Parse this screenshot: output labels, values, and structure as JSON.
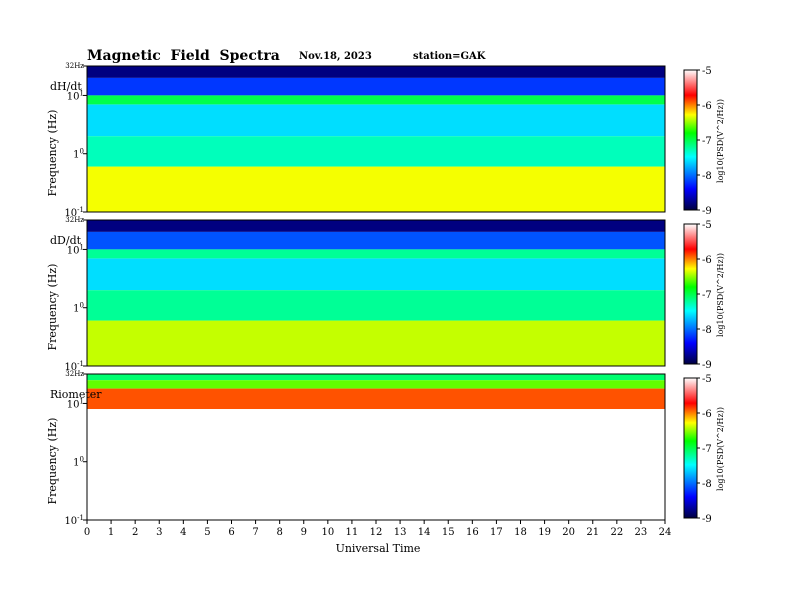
{
  "header": {
    "title": "Magnetic  Field  Spectra",
    "date": "Nov.18, 2023",
    "station": "station=GAK"
  },
  "chart_data": {
    "type": "heatmap",
    "xlabel": "Universal Time",
    "x_ticks": [
      "0",
      "1",
      "2",
      "3",
      "4",
      "5",
      "6",
      "7",
      "8",
      "9",
      "10",
      "11",
      "12",
      "13",
      "14",
      "15",
      "16",
      "17",
      "18",
      "19",
      "20",
      "21",
      "22",
      "23",
      "24"
    ],
    "xlim": [
      0,
      24
    ],
    "y_scale": "log",
    "ylim_hz": [
      0.1,
      32
    ],
    "colorbar": {
      "label": "log10(PSD(V^2/Hz))",
      "ticks": [
        "-5",
        "-6",
        "-7",
        "-8",
        "-9"
      ],
      "range": [
        -9,
        -5
      ],
      "colors": [
        "#000040",
        "#0000ff",
        "#00ffff",
        "#00ff00",
        "#ffff00",
        "#ff0000",
        "#ffffff"
      ]
    },
    "panels": [
      {
        "label": "dH/dt",
        "ylabel": "Frequency  (Hz)",
        "y_ticks": [
          "32Hz",
          "10",
          "1",
          "10"
        ],
        "y_tick_values": [
          32,
          10,
          1,
          0.1
        ],
        "y_tick_exponents": [
          "",
          "1",
          "0",
          "-1"
        ],
        "bands": [
          {
            "f_low": 20,
            "f_high": 32,
            "log_psd": -8.8
          },
          {
            "f_low": 10,
            "f_high": 20,
            "log_psd": -8.2
          },
          {
            "f_low": 7,
            "f_high": 10,
            "log_psd": -7.0
          },
          {
            "f_low": 2,
            "f_high": 7,
            "log_psd": -7.6
          },
          {
            "f_low": 0.6,
            "f_high": 2,
            "log_psd": -7.3
          },
          {
            "f_low": 0.1,
            "f_high": 0.6,
            "log_psd": -6.3
          }
        ]
      },
      {
        "label": "dD/dt",
        "ylabel": "Frequency  (Hz)",
        "y_ticks": [
          "32Hz",
          "10",
          "1",
          "10"
        ],
        "y_tick_values": [
          32,
          10,
          1,
          0.1
        ],
        "y_tick_exponents": [
          "",
          "1",
          "0",
          "-1"
        ],
        "bands": [
          {
            "f_low": 20,
            "f_high": 32,
            "log_psd": -8.8
          },
          {
            "f_low": 10,
            "f_high": 20,
            "log_psd": -8.1
          },
          {
            "f_low": 7,
            "f_high": 10,
            "log_psd": -7.2
          },
          {
            "f_low": 2,
            "f_high": 7,
            "log_psd": -7.6
          },
          {
            "f_low": 0.6,
            "f_high": 2,
            "log_psd": -7.2
          },
          {
            "f_low": 0.1,
            "f_high": 0.6,
            "log_psd": -6.4
          }
        ]
      },
      {
        "label": "Riometer",
        "ylabel": "Frequency  (Hz)",
        "y_ticks": [
          "32Hz",
          "10",
          "1",
          "10"
        ],
        "y_tick_values": [
          32,
          10,
          1,
          0.1
        ],
        "y_tick_exponents": [
          "",
          "1",
          "0",
          "-1"
        ],
        "bands": [
          {
            "f_low": 25,
            "f_high": 32,
            "log_psd": -7.1
          },
          {
            "f_low": 18,
            "f_high": 25,
            "log_psd": -6.6
          },
          {
            "f_low": 8,
            "f_high": 18,
            "log_psd": -5.9
          },
          {
            "f_low": 0.1,
            "f_high": 8,
            "log_psd": -5.0
          }
        ]
      }
    ]
  }
}
